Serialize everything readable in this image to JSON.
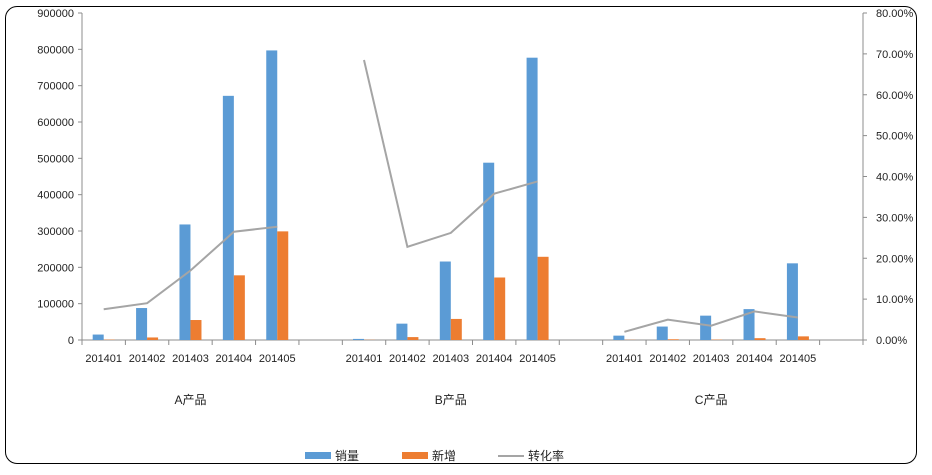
{
  "chart_data": {
    "type": "bar",
    "groups": [
      "A产品",
      "B产品",
      "C产品"
    ],
    "categories": [
      "201401",
      "201402",
      "201403",
      "201404",
      "201405"
    ],
    "series": [
      {
        "name": "销量",
        "kind": "bar",
        "axis": "left",
        "color": "#5B9BD5",
        "values": [
          [
            15000,
            88000,
            318000,
            672000,
            797000
          ],
          [
            3000,
            45000,
            216000,
            488000,
            777000
          ],
          [
            12000,
            37000,
            67000,
            85000,
            211000
          ]
        ]
      },
      {
        "name": "新增",
        "kind": "bar",
        "axis": "left",
        "color": "#ED7D31",
        "values": [
          [
            1000,
            7000,
            55000,
            178000,
            299000
          ],
          [
            500,
            8000,
            58000,
            172000,
            229000
          ],
          [
            500,
            2000,
            1000,
            5000,
            10000
          ]
        ]
      },
      {
        "name": "转化率",
        "kind": "line",
        "axis": "right",
        "color": "#A5A5A5",
        "values": [
          [
            0.075,
            0.09,
            0.17,
            0.265,
            0.277
          ],
          [
            0.685,
            0.228,
            0.262,
            0.358,
            0.388
          ],
          [
            0.02,
            0.05,
            0.035,
            0.07,
            0.055
          ]
        ]
      }
    ],
    "left_axis": {
      "min": 0,
      "max": 900000,
      "step": 100000,
      "tick_labels": [
        "0",
        "100000",
        "200000",
        "300000",
        "400000",
        "500000",
        "600000",
        "700000",
        "800000",
        "900000"
      ]
    },
    "right_axis": {
      "min": 0,
      "max": 0.8,
      "step": 0.1,
      "tick_labels": [
        "0.00%",
        "10.00%",
        "20.00%",
        "30.00%",
        "40.00%",
        "50.00%",
        "60.00%",
        "70.00%",
        "80.00%"
      ]
    },
    "grid": false,
    "legend_position": "bottom"
  }
}
